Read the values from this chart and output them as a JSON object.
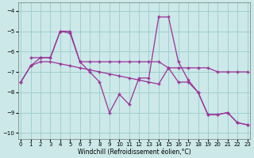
{
  "background_color": "#cce8e8",
  "grid_color": "#99cccc",
  "line_color": "#993399",
  "xlim": [
    -0.3,
    23.3
  ],
  "ylim": [
    -10.3,
    -3.6
  ],
  "yticks": [
    -10,
    -9,
    -8,
    -7,
    -6,
    -5,
    -4
  ],
  "xticks": [
    0,
    1,
    2,
    3,
    4,
    5,
    6,
    7,
    8,
    9,
    10,
    11,
    12,
    13,
    14,
    15,
    16,
    17,
    18,
    19,
    20,
    21,
    22,
    23
  ],
  "xlabel": "Windchill (Refroidissement éolien,°C)",
  "curve1_x": [
    1,
    2,
    3,
    4,
    5,
    6,
    7,
    8,
    9,
    10,
    11,
    12,
    13,
    14,
    15,
    16,
    17,
    18,
    19,
    20,
    21,
    22,
    23
  ],
  "curve1_y": [
    -6.3,
    -6.3,
    -6.3,
    -5.0,
    -5.0,
    -6.5,
    -6.5,
    -6.5,
    -6.5,
    -6.5,
    -6.5,
    -6.5,
    -6.5,
    -6.5,
    -6.8,
    -6.8,
    -6.8,
    -6.8,
    -6.8,
    -7.0,
    -7.0,
    -7.0,
    -7.0
  ],
  "curve2_x": [
    0,
    1,
    2,
    3,
    4,
    5,
    6,
    7,
    8,
    9,
    10,
    11,
    12,
    13,
    14,
    15,
    16,
    17,
    18,
    19,
    20,
    21,
    22,
    23
  ],
  "curve2_y": [
    -7.5,
    -6.7,
    -6.3,
    -6.3,
    -5.0,
    -5.1,
    -6.5,
    -7.0,
    -7.5,
    -9.0,
    -8.1,
    -8.6,
    -7.3,
    -7.3,
    -4.3,
    -4.3,
    -6.5,
    -7.4,
    -8.0,
    -9.1,
    -9.1,
    -9.0,
    -9.5,
    -9.6
  ],
  "curve3_x": [
    0,
    1,
    2,
    3,
    4,
    5,
    6,
    7,
    8,
    9,
    10,
    11,
    12,
    13,
    14,
    15,
    16,
    17,
    18,
    19,
    20,
    21,
    22,
    23
  ],
  "curve3_y": [
    -7.5,
    -6.7,
    -6.5,
    -6.5,
    -6.6,
    -6.7,
    -6.8,
    -6.9,
    -7.0,
    -7.1,
    -7.2,
    -7.3,
    -7.4,
    -7.5,
    -7.6,
    -6.8,
    -7.5,
    -7.5,
    -8.0,
    -9.1,
    -9.1,
    -9.0,
    -9.5,
    -9.6
  ]
}
